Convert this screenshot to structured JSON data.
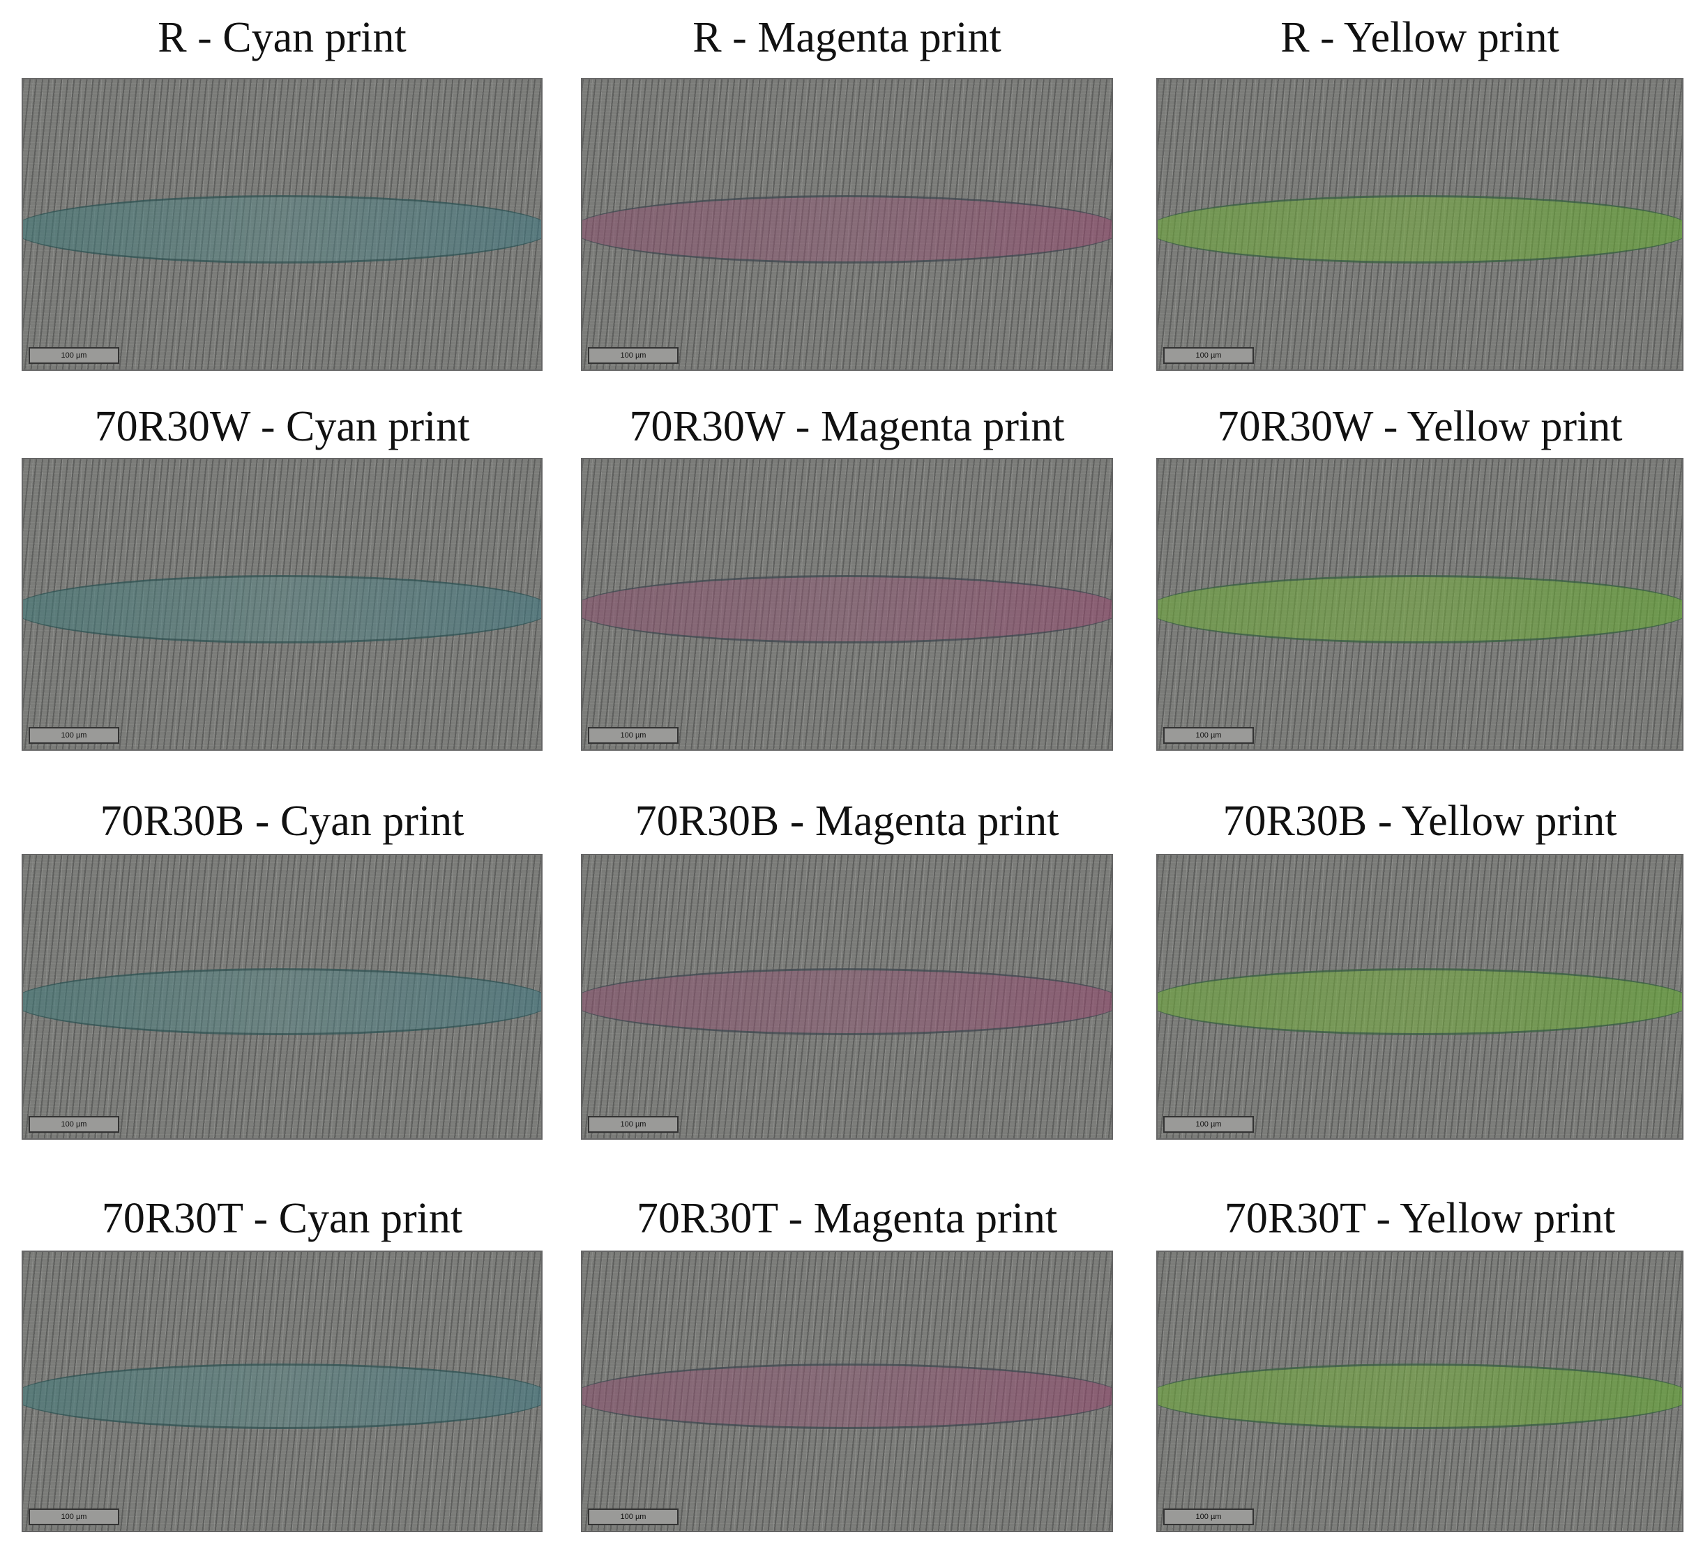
{
  "panels": [
    {
      "title": "R - Cyan print",
      "scale_bar": "100 µm"
    },
    {
      "title": "R - Magenta print",
      "scale_bar": "100 µm"
    },
    {
      "title": "R - Yellow print",
      "scale_bar": "100 µm"
    },
    {
      "title": "70R30W - Cyan print",
      "scale_bar": "100 µm"
    },
    {
      "title": "70R30W - Magenta print",
      "scale_bar": "100 µm"
    },
    {
      "title": "70R30W - Yellow print",
      "scale_bar": "100 µm"
    },
    {
      "title": "70R30B - Cyan print",
      "scale_bar": "100 µm"
    },
    {
      "title": "70R30B - Magenta print",
      "scale_bar": "100 µm"
    },
    {
      "title": "70R30B - Yellow print",
      "scale_bar": "100 µm"
    },
    {
      "title": "70R30T - Cyan print",
      "scale_bar": "100 µm"
    },
    {
      "title": "70R30T - Magenta print",
      "scale_bar": "100 µm"
    },
    {
      "title": "70R30T - Yellow print",
      "scale_bar": "100 µm"
    }
  ]
}
